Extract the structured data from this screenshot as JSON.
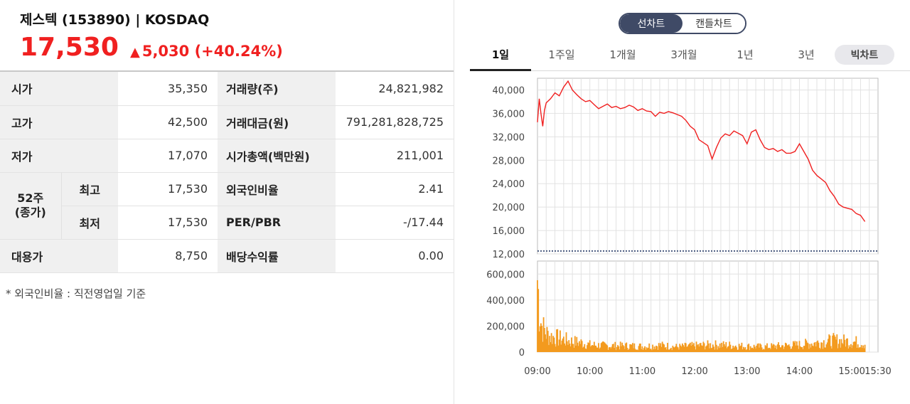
{
  "header": {
    "stock_name": "제스텍 (153890) | KOSDAQ",
    "price": "17,530",
    "change": "5,030 (+40.24%)"
  },
  "stats": {
    "open": {
      "label": "시가",
      "value": "35,350"
    },
    "high": {
      "label": "고가",
      "value": "42,500"
    },
    "low": {
      "label": "저가",
      "value": "17,070"
    },
    "w52": {
      "label": "52주\n(종가)",
      "high_label": "최고",
      "high_value": "17,530",
      "low_label": "최저",
      "low_value": "17,530"
    },
    "reference": {
      "label": "대용가",
      "value": "8,750"
    },
    "volume": {
      "label": "거래량(주)",
      "value": "24,821,982"
    },
    "trade_value": {
      "label": "거래대금(원)",
      "value": "791,281,828,725"
    },
    "market_cap": {
      "label": "시가총액(백만원)",
      "value": "211,001"
    },
    "foreign_ratio": {
      "label": "외국인비율",
      "value": "2.41"
    },
    "per_pbr": {
      "label": "PER/PBR",
      "value": "-/17.44"
    },
    "dividend": {
      "label": "배당수익률",
      "value": "0.00"
    }
  },
  "footnote": "* 외국인비율 : 직전영업일 기준",
  "chart_toggle": {
    "line": "선차트",
    "candle": "캔들차트"
  },
  "periods": [
    "1일",
    "1주일",
    "1개월",
    "3개월",
    "1년",
    "3년"
  ],
  "big_chart_label": "빅차트",
  "colors": {
    "up": "#f02020",
    "toggle": "#3f4a66",
    "volume": "#f39a1e"
  },
  "chart_data": {
    "type": "line",
    "x_ticks": [
      "09:00",
      "10:00",
      "11:00",
      "12:00",
      "13:00",
      "14:00",
      "15:00",
      "15:30"
    ],
    "price_axis": {
      "ticks": [
        "40,000",
        "36,000",
        "32,000",
        "28,000",
        "24,000",
        "20,000",
        "16,000",
        "12,000"
      ],
      "ylim": [
        12000,
        42000
      ],
      "reference_line": 12500
    },
    "volume_axis": {
      "ticks": [
        "600,000",
        "400,000",
        "200,000",
        "0"
      ],
      "ylim": [
        0,
        700000
      ]
    },
    "price_series": {
      "x": [
        "09:00",
        "09:02",
        "09:04",
        "09:06",
        "09:08",
        "09:10",
        "09:15",
        "09:20",
        "09:25",
        "09:30",
        "09:35",
        "09:40",
        "09:45",
        "09:50",
        "09:55",
        "10:00",
        "10:05",
        "10:10",
        "10:15",
        "10:20",
        "10:25",
        "10:30",
        "10:35",
        "10:40",
        "10:45",
        "10:50",
        "10:55",
        "11:00",
        "11:05",
        "11:10",
        "11:15",
        "11:20",
        "11:25",
        "11:30",
        "11:35",
        "11:40",
        "11:45",
        "11:50",
        "11:55",
        "12:00",
        "12:05",
        "12:10",
        "12:15",
        "12:20",
        "12:25",
        "12:30",
        "12:35",
        "12:40",
        "12:45",
        "12:50",
        "12:55",
        "13:00",
        "13:05",
        "13:10",
        "13:15",
        "13:20",
        "13:25",
        "13:30",
        "13:35",
        "13:40",
        "13:45",
        "13:50",
        "13:55",
        "14:00",
        "14:05",
        "14:10",
        "14:15",
        "14:20",
        "14:25",
        "14:30",
        "14:35",
        "14:40",
        "14:45",
        "14:50",
        "14:55",
        "15:00",
        "15:05",
        "15:10",
        "15:15"
      ],
      "values": [
        34500,
        38500,
        36000,
        33800,
        36500,
        37800,
        38500,
        39500,
        39000,
        40500,
        41500,
        40000,
        39200,
        38500,
        38000,
        38200,
        37500,
        36800,
        37200,
        37600,
        37000,
        37200,
        36800,
        37000,
        37400,
        37100,
        36500,
        36800,
        36400,
        36300,
        35500,
        36200,
        36000,
        36300,
        36100,
        35800,
        35500,
        34800,
        33800,
        33200,
        31500,
        31000,
        30500,
        28200,
        30200,
        31800,
        32500,
        32200,
        33000,
        32600,
        32200,
        30800,
        32800,
        33200,
        31500,
        30200,
        29800,
        30000,
        29500,
        29800,
        29200,
        29200,
        29500,
        30800,
        29500,
        28200,
        26300,
        25400,
        24800,
        24200,
        22800,
        21800,
        20500,
        20000,
        19800,
        19600,
        18900,
        18600,
        17530
      ]
    },
    "volume_series": {
      "x": [
        "09:00",
        "09:01",
        "09:02",
        "09:03",
        "09:04",
        "09:05",
        "09:07",
        "09:10",
        "09:15",
        "09:20",
        "09:30",
        "09:40",
        "09:50",
        "10:00",
        "10:20",
        "10:40",
        "11:00",
        "11:20",
        "11:40",
        "12:00",
        "12:20",
        "12:40",
        "13:00",
        "13:20",
        "13:40",
        "14:00",
        "14:20",
        "14:40",
        "15:00",
        "15:10",
        "15:15"
      ],
      "values": [
        700000,
        560000,
        420000,
        380000,
        300000,
        250000,
        220000,
        180000,
        150000,
        140000,
        120000,
        100000,
        90000,
        70000,
        60000,
        60000,
        55000,
        65000,
        50000,
        60000,
        70000,
        65000,
        55000,
        50000,
        60000,
        70000,
        90000,
        110000,
        100000,
        90000,
        80000
      ]
    }
  }
}
